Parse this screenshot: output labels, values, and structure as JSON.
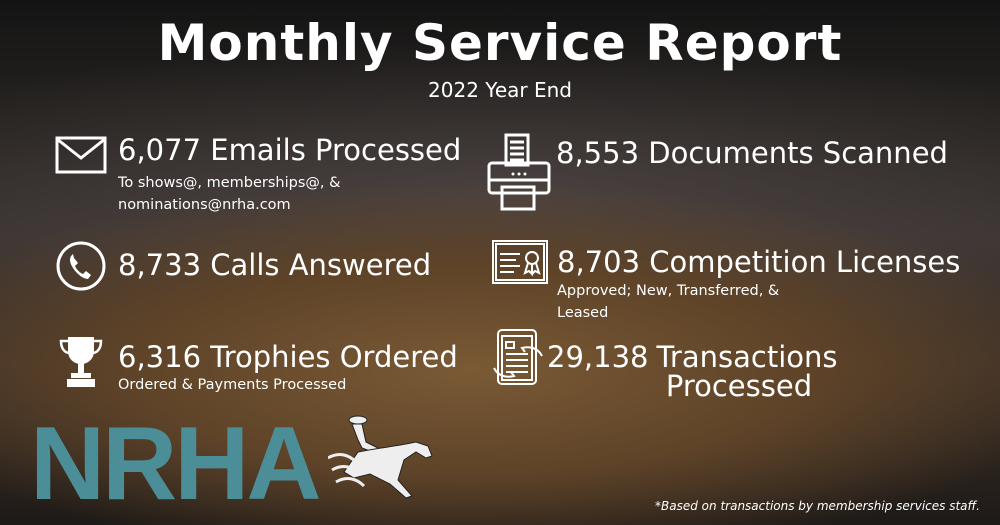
{
  "header": {
    "title": "Monthly Service Report",
    "subtitle": "2022 Year End"
  },
  "stats": [
    {
      "icon": "envelope-icon",
      "headline": "6,077 Emails Processed",
      "detail": [
        "To shows@, memberships@, &",
        "nominations@nrha.com"
      ]
    },
    {
      "icon": "printer-icon",
      "headline": "8,553 Documents Scanned"
    },
    {
      "icon": "phone-icon",
      "headline": "8,733 Calls Answered"
    },
    {
      "icon": "certificate-icon",
      "headline": "8,703 Competition Licenses",
      "detail": [
        "Approved; New, Transferred, &",
        "Leased"
      ]
    },
    {
      "icon": "trophy-icon",
      "headline": "6,316 Trophies Ordered",
      "detail": [
        "Ordered & Payments Processed"
      ]
    },
    {
      "icon": "transactions-icon",
      "number": "29,138",
      "headline_line1": "Transactions",
      "headline_line2": "Processed"
    }
  ],
  "logo": {
    "text": "NRHA"
  },
  "footnote": "*Based on transactions by membership services staff."
}
